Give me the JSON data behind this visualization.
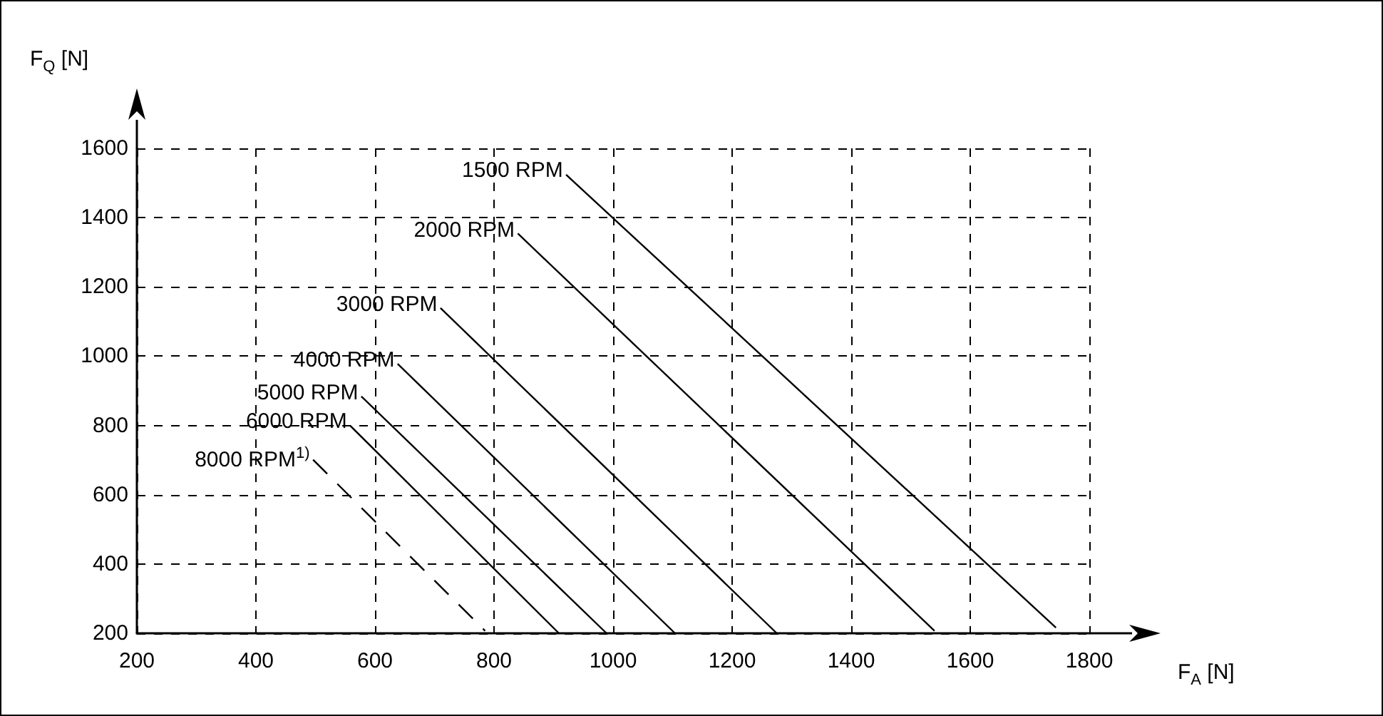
{
  "chart_data": {
    "type": "line",
    "xlabel": "F$_{A}$ [N]",
    "ylabel": "F$_{Q}$ [N]",
    "xlim": [
      200,
      1800
    ],
    "xticks": [
      200,
      400,
      600,
      800,
      1000,
      1200,
      1400,
      1600,
      1800
    ],
    "ylim": [
      200,
      1600
    ],
    "yticks": [
      200,
      400,
      600,
      800,
      1000,
      1200,
      1400,
      1600
    ],
    "grid": true,
    "legend": false,
    "marker": "none",
    "series": [
      {
        "name": "1500 RPM",
        "color": "#000000",
        "x": [
          921,
          1744
        ],
        "values": [
          1524,
          216
        ]
      },
      {
        "name": "2000 RPM",
        "color": "#000000",
        "x": [
          840,
          1540
        ],
        "values": [
          1354,
          207
        ]
      },
      {
        "name": "3000 RPM",
        "color": "#000000",
        "x": [
          710,
          1275
        ],
        "values": [
          1139,
          200
        ]
      },
      {
        "name": "4000 RPM",
        "color": "#000000",
        "x": [
          638,
          1104
        ],
        "values": [
          978,
          200
        ]
      },
      {
        "name": "5000 RPM",
        "color": "#000000",
        "x": [
          577,
          989
        ],
        "values": [
          884,
          200
        ]
      },
      {
        "name": "6000 RPM",
        "color": "#000000",
        "x": [
          558,
          909
        ],
        "values": [
          800,
          200
        ]
      },
      {
        "name": "8000 RPM$^{1)}$",
        "color": "#000000",
        "x": [
          496,
          785
        ],
        "values": [
          701,
          207
        ],
        "line_style": "dashed"
      }
    ]
  }
}
